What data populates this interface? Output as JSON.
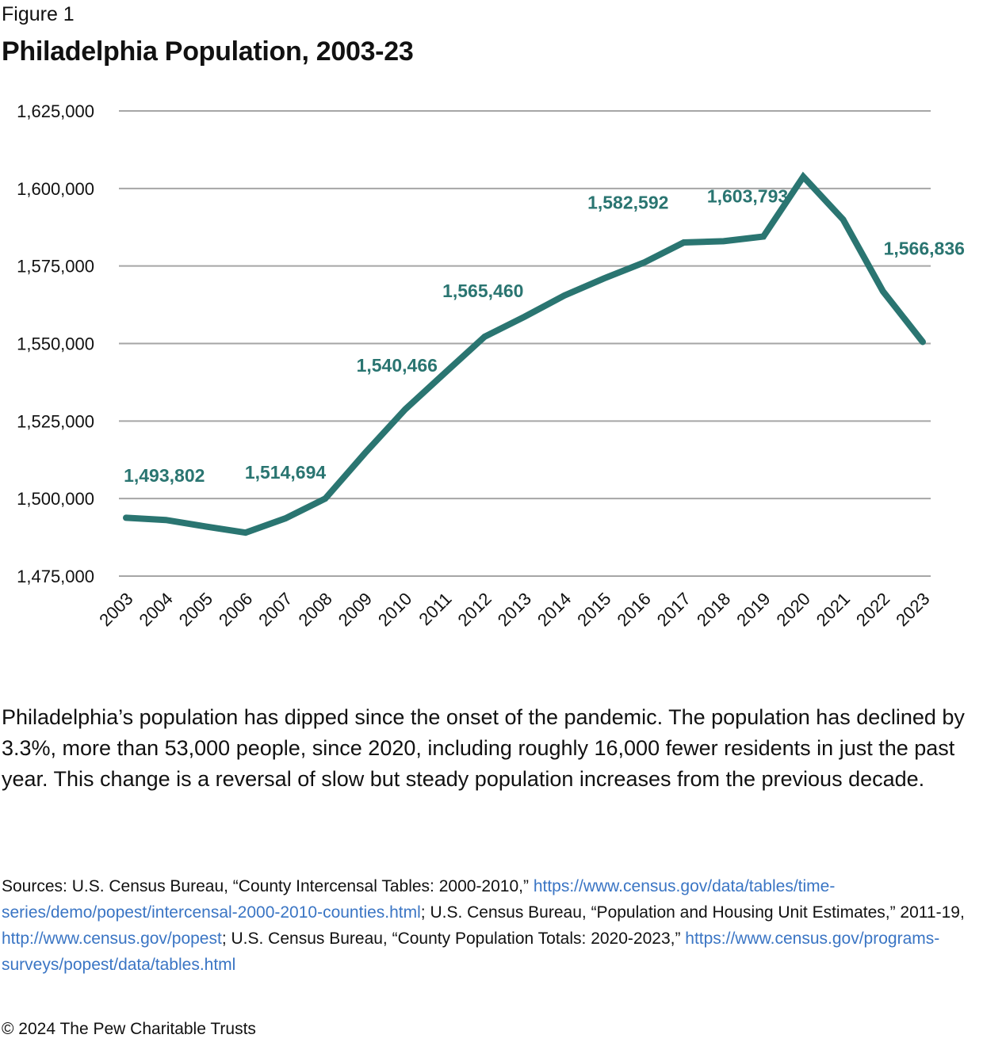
{
  "figure_label": "Figure 1",
  "title": "Philadelphia Population, 2003-23",
  "chart_data": {
    "type": "line",
    "title": "Philadelphia Population, 2003-23",
    "xlabel": "",
    "ylabel": "",
    "x": [
      "2003",
      "2004",
      "2005",
      "2006",
      "2007",
      "2008",
      "2009",
      "2010",
      "2011",
      "2012",
      "2013",
      "2014",
      "2015",
      "2016",
      "2017",
      "2018",
      "2019",
      "2020",
      "2021",
      "2022",
      "2023"
    ],
    "series": [
      {
        "name": "Philadelphia population",
        "color": "#2a7571",
        "values": [
          1493802,
          1493100,
          1491000,
          1489000,
          1493600,
          1500000,
          1514694,
          1528700,
          1540466,
          1552200,
          1558600,
          1565460,
          1571000,
          1576100,
          1582592,
          1583000,
          1584500,
          1603793,
          1590000,
          1566836,
          1550500
        ]
      }
    ],
    "ylim": [
      1475000,
      1625000
    ],
    "yticks": [
      1475000,
      1500000,
      1525000,
      1550000,
      1575000,
      1600000,
      1625000
    ],
    "ytick_labels": [
      "1,475,000",
      "1,500,000",
      "1,525,000",
      "1,550,000",
      "1,575,000",
      "1,600,000",
      "1,625,000"
    ],
    "grid": true,
    "legend": "none",
    "annotations": [
      {
        "x": "2004",
        "text": "1,493,802"
      },
      {
        "x": "2007",
        "text": "1,514,694"
      },
      {
        "x": "2010",
        "text": "1,540,466"
      },
      {
        "x": "2012",
        "text": "1,565,460"
      },
      {
        "x": "2016",
        "text": "1,582,592"
      },
      {
        "x": "2019",
        "text": "1,603,793"
      },
      {
        "x": "2022",
        "text": "1,566,836"
      }
    ]
  },
  "body_text": "Philadelphia’s population has dipped since the onset of the pandemic. The population has declined by 3.3%, more than 53,000 people, since 2020, including roughly 16,000 fewer residents in just the past year. This change is a reversal of slow but steady population increases from the previous decade.",
  "sources": {
    "prefix": "Sources: U.S. Census Bureau, “County Intercensal Tables: 2000-2010,” ",
    "link1": "https://www.census.gov/data/tables/time-series/demo/popest/intercensal-2000-2010-counties.html",
    "mid1": "; U.S. Census Bureau, “Population and Housing Unit Estimates,” 2011-19, ",
    "link2": "http://www.census.gov/popest",
    "mid2": "; U.S. Census Bureau, “County Population Totals: 2020-2023,” ",
    "link3": "https://www.census.gov/programs-surveys/popest/data/tables.html"
  },
  "copyright": "© 2024 The Pew Charitable Trusts"
}
